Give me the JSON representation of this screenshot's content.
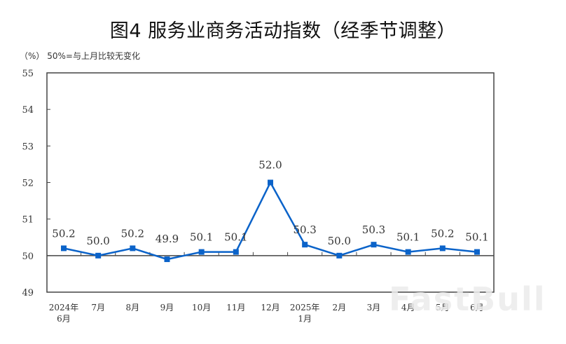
{
  "title": "图4  服务业商务活动指数（经季节调整）",
  "unit_note": "（%）  50%=与上月比较无变化",
  "watermark": "FastBull",
  "colors": {
    "series": "#0b63c9",
    "axis": "#444444",
    "text": "#333333"
  },
  "chart_data": {
    "type": "line",
    "title": "图4  服务业商务活动指数（经季节调整）",
    "ylabel": "（%）",
    "annotation": "50%=与上月比较无变化",
    "xlabel": "",
    "ylim": [
      49,
      55
    ],
    "yticks": [
      49,
      50,
      51,
      52,
      53,
      54,
      55
    ],
    "reference_line": 50,
    "grid": false,
    "legend": null,
    "categories": [
      "2024年6月",
      "7月",
      "8月",
      "9月",
      "10月",
      "11月",
      "12月",
      "2025年1月",
      "2月",
      "3月",
      "4月",
      "5月",
      "6月"
    ],
    "category_labels": [
      [
        "2024年",
        "6月"
      ],
      [
        "7月"
      ],
      [
        "8月"
      ],
      [
        "9月"
      ],
      [
        "10月"
      ],
      [
        "11月"
      ],
      [
        "12月"
      ],
      [
        "2025年",
        "1月"
      ],
      [
        "2月"
      ],
      [
        "3月"
      ],
      [
        "4月"
      ],
      [
        "5月"
      ],
      [
        "6月"
      ]
    ],
    "series": [
      {
        "name": "服务业商务活动指数",
        "values": [
          50.2,
          50.0,
          50.2,
          49.9,
          50.1,
          50.1,
          52.0,
          50.3,
          50.0,
          50.3,
          50.1,
          50.2,
          50.1
        ],
        "labels": [
          "50.2",
          "50.0",
          "50.2",
          "49.9",
          "50.1",
          "50.1",
          "52.0",
          "50.3",
          "50.0",
          "50.3",
          "50.1",
          "50.2",
          "50.1"
        ]
      }
    ]
  }
}
